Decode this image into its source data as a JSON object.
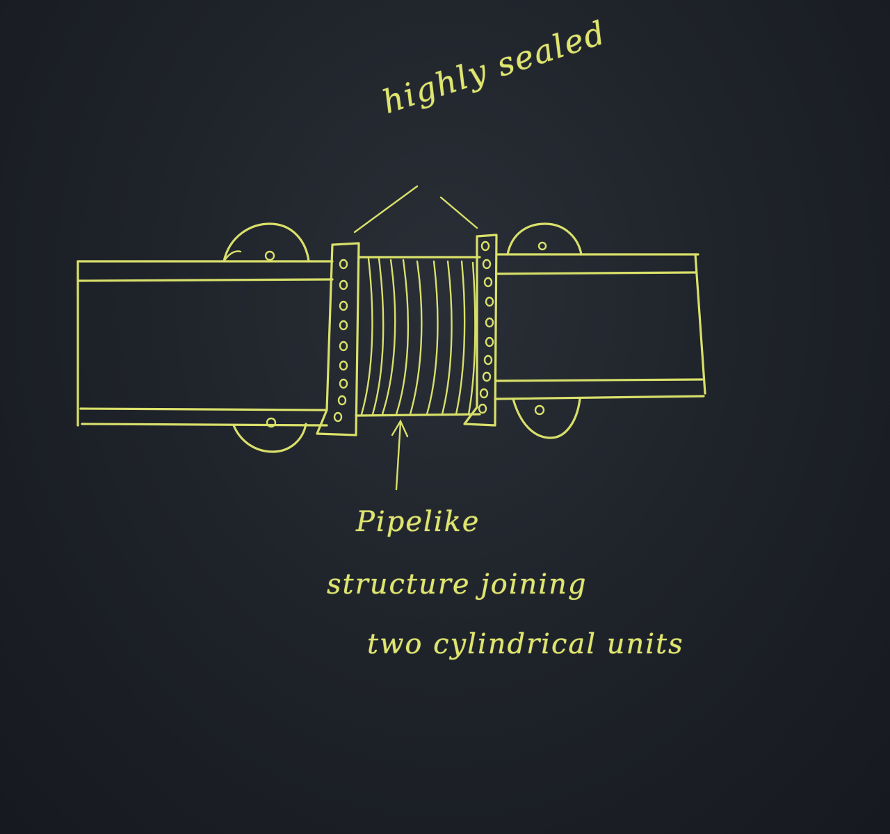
{
  "labels": {
    "top": "highly sealed",
    "bottom_line1": "Pipelike",
    "bottom_line2": "structure joining",
    "bottom_line3": "two cylindrical units"
  },
  "colors": {
    "board": "#1c2027",
    "chalk": "#d9e06a"
  }
}
